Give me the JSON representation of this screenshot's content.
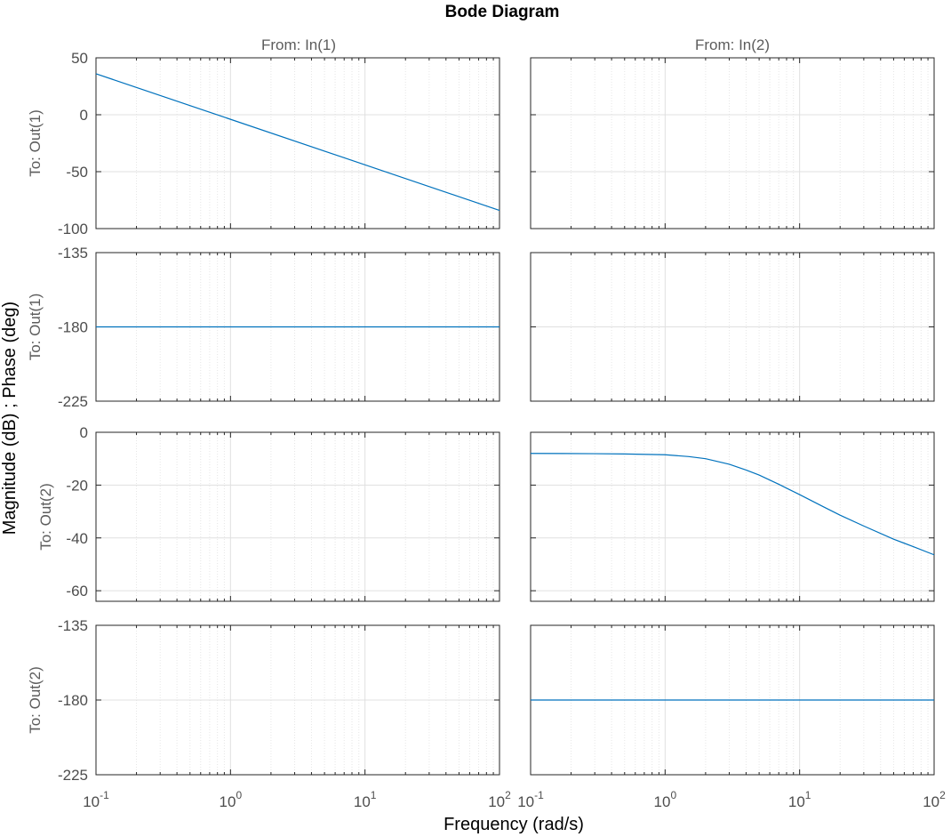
{
  "chart_data": {
    "type": "line",
    "title": "Bode Diagram",
    "xlabel": "Frequency  (rad/s)",
    "ylabel": "Magnitude (dB) ; Phase (deg)",
    "x_scale": "log",
    "xlim": [
      0.1,
      100
    ],
    "x_ticks": [
      {
        "base": "10",
        "exp": "-1",
        "value": 0.1
      },
      {
        "base": "10",
        "exp": "0",
        "value": 1
      },
      {
        "base": "10",
        "exp": "1",
        "value": 10
      },
      {
        "base": "10",
        "exp": "2",
        "value": 100
      }
    ],
    "grid": true,
    "line_color": "#0072BD",
    "column_labels": [
      "From: In(1)",
      "From: In(2)"
    ],
    "row_labels": [
      "To: Out(1)",
      "To: Out(1)",
      "To: Out(2)",
      "To: Out(2)"
    ],
    "panels": [
      {
        "row": 0,
        "col": 0,
        "kind": "magnitude",
        "ylim": [
          -100,
          50
        ],
        "yticks": [
          50,
          0,
          -50,
          -100
        ],
        "series": [
          {
            "x": [
              0.1,
              1,
              10,
              100
            ],
            "y": [
              36,
              -4,
              -44,
              -84
            ]
          }
        ]
      },
      {
        "row": 0,
        "col": 1,
        "kind": "magnitude",
        "ylim": [
          -100,
          50
        ],
        "yticks": [],
        "series": []
      },
      {
        "row": 1,
        "col": 0,
        "kind": "phase",
        "ylim": [
          -225,
          -135
        ],
        "yticks": [
          -135,
          -180,
          -225
        ],
        "series": [
          {
            "x": [
              0.1,
              100
            ],
            "y": [
              -180,
              -180
            ]
          }
        ]
      },
      {
        "row": 1,
        "col": 1,
        "kind": "phase",
        "ylim": [
          -225,
          -135
        ],
        "yticks": [],
        "series": []
      },
      {
        "row": 2,
        "col": 0,
        "kind": "magnitude",
        "ylim": [
          -64,
          0
        ],
        "yticks": [
          0,
          -20,
          -40,
          -60
        ],
        "series": []
      },
      {
        "row": 2,
        "col": 1,
        "kind": "magnitude",
        "ylim": [
          -64,
          0
        ],
        "yticks": [],
        "series": [
          {
            "x": [
              0.1,
              0.3,
              0.5,
              1,
              1.5,
              2,
              3,
              4,
              5,
              7,
              10,
              15,
              20,
              30,
              50,
              70,
              100
            ],
            "y": [
              -8.0,
              -8.1,
              -8.2,
              -8.5,
              -9.2,
              -10.0,
              -12.1,
              -14.3,
              -16.2,
              -19.7,
              -23.6,
              -28.2,
              -31.4,
              -35.5,
              -40.5,
              -43.3,
              -46.4
            ]
          }
        ]
      },
      {
        "row": 3,
        "col": 0,
        "kind": "phase",
        "ylim": [
          -225,
          -135
        ],
        "yticks": [
          -135,
          -180,
          -225
        ],
        "series": []
      },
      {
        "row": 3,
        "col": 1,
        "kind": "phase",
        "ylim": [
          -225,
          -135
        ],
        "yticks": [],
        "series": [
          {
            "x": [
              0.1,
              100
            ],
            "y": [
              -180,
              -180
            ]
          }
        ]
      }
    ]
  }
}
